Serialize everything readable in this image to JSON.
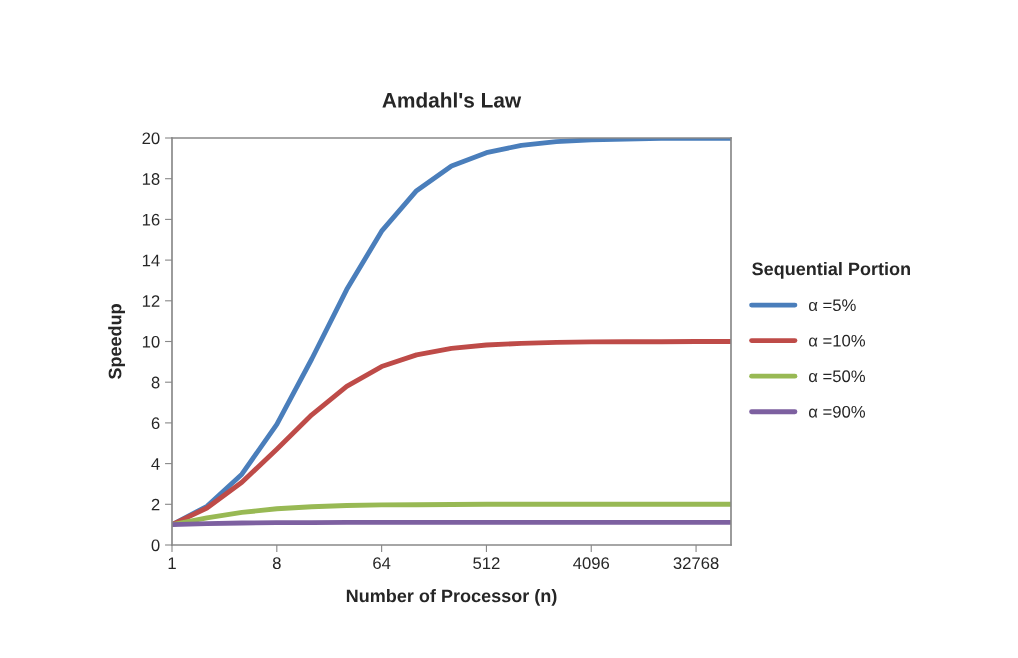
{
  "chart_data": {
    "type": "line",
    "title": "Amdahl's Law",
    "xlabel": "Number of Processor (n)",
    "ylabel": "Speedup",
    "legend_title": "Sequential Portion",
    "legend": "right",
    "grid": false,
    "marker": "none",
    "line_style": "solid",
    "log": "x",
    "x": [
      1,
      2,
      4,
      8,
      16,
      32,
      64,
      128,
      256,
      512,
      1024,
      2048,
      4096,
      8192,
      16384,
      32768,
      65536
    ],
    "xlim": [
      1,
      65536
    ],
    "xticks": [
      1,
      8,
      64,
      512,
      4096,
      32768
    ],
    "ylim": [
      0,
      20
    ],
    "yticks": [
      0,
      2,
      4,
      6,
      8,
      10,
      12,
      14,
      16,
      18,
      20
    ],
    "series": [
      {
        "name": "α =5%",
        "color": "#4a7ebb",
        "values": [
          1,
          1.9,
          3.48,
          5.93,
          9.14,
          12.55,
          15.42,
          17.41,
          18.62,
          19.28,
          19.64,
          19.82,
          19.91,
          19.95,
          19.98,
          19.99,
          19.99
        ]
      },
      {
        "name": "α =10%",
        "color": "#be4b48",
        "values": [
          1,
          1.82,
          3.08,
          4.71,
          6.4,
          7.8,
          8.77,
          9.34,
          9.66,
          9.83,
          9.91,
          9.96,
          9.98,
          9.99,
          9.99,
          10,
          10
        ]
      },
      {
        "name": "α =50%",
        "color": "#98b954",
        "values": [
          1,
          1.33,
          1.6,
          1.78,
          1.88,
          1.94,
          1.97,
          1.98,
          1.99,
          2,
          2,
          2,
          2,
          2,
          2,
          2,
          2
        ]
      },
      {
        "name": "α =90%",
        "color": "#7d60a0",
        "values": [
          1,
          1.05,
          1.08,
          1.1,
          1.1,
          1.11,
          1.11,
          1.11,
          1.11,
          1.11,
          1.11,
          1.11,
          1.11,
          1.11,
          1.11,
          1.11,
          1.11
        ]
      }
    ]
  }
}
